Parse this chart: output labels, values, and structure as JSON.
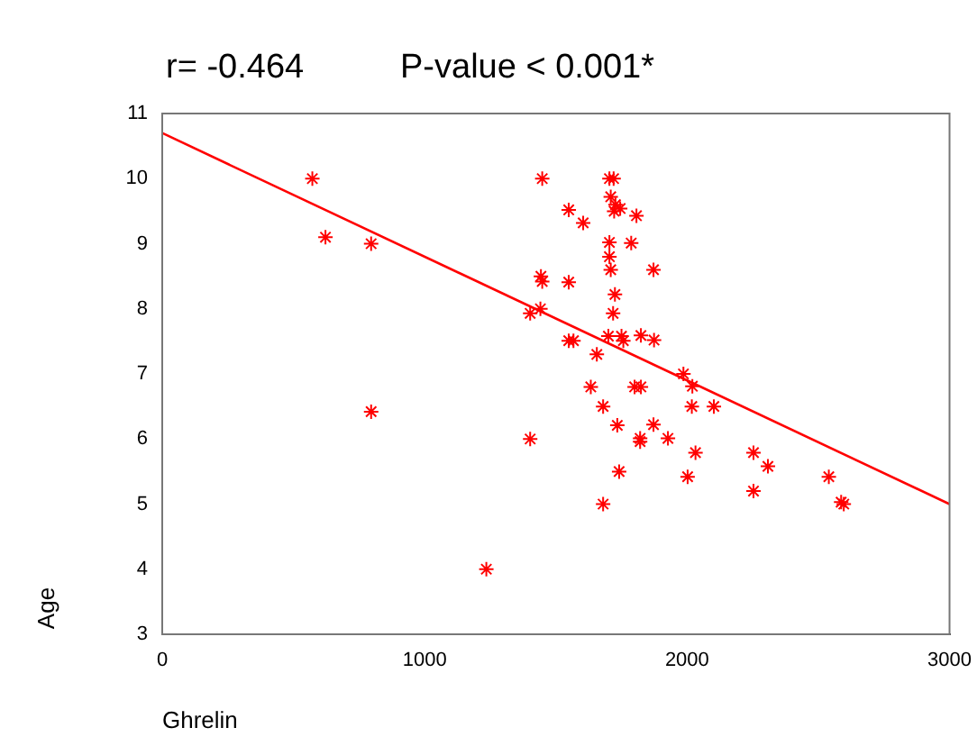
{
  "chart_data": {
    "type": "scatter",
    "title": "r= -0.464",
    "subtitle": "P-value < 0.001*",
    "xlabel": "Ghrelin",
    "ylabel": "Age",
    "xlim": [
      0,
      3000
    ],
    "xticks": [
      0,
      1000,
      2000,
      3000
    ],
    "ylim": [
      3,
      11
    ],
    "yticks": [
      3,
      4,
      5,
      6,
      7,
      8,
      9,
      10,
      11
    ],
    "grid": false,
    "legend": false,
    "marker": "cross",
    "series": [
      {
        "color": "#ff0000",
        "x": [
          572,
          622,
          796,
          796,
          1402,
          1235,
          1448,
          1402,
          1441,
          1443,
          1448,
          1704,
          1720,
          1709,
          1727,
          1745,
          1722,
          1549,
          1604,
          1807,
          1704,
          1787,
          1704,
          1709,
          1872,
          1549,
          1725,
          1718,
          1549,
          1567,
          1656,
          1700,
          1750,
          1757,
          1824,
          1874,
          1986,
          2020,
          1633,
          1800,
          1824,
          1680,
          2018,
          2102,
          1734,
          1872,
          1821,
          1821,
          1927,
          2032,
          2253,
          2308,
          1741,
          2002,
          2540,
          2253,
          2587,
          2597,
          1680
        ],
        "values": [
          10.0,
          9.1,
          9.0,
          6.42,
          6.0,
          4.0,
          10.0,
          7.93,
          8.0,
          8.5,
          8.42,
          10.0,
          10.0,
          9.72,
          9.6,
          9.54,
          9.5,
          9.52,
          9.32,
          9.43,
          9.02,
          9.01,
          8.8,
          8.6,
          8.6,
          8.41,
          8.22,
          7.93,
          7.51,
          7.51,
          7.3,
          7.58,
          7.58,
          7.51,
          7.59,
          7.52,
          7.0,
          6.81,
          6.8,
          6.8,
          6.8,
          6.5,
          6.5,
          6.5,
          6.21,
          6.22,
          6.01,
          5.96,
          6.01,
          5.79,
          5.79,
          5.58,
          5.5,
          5.42,
          5.42,
          5.2,
          5.03,
          5.0,
          5.0
        ]
      },
      {
        "type": "line",
        "color": "#ff0000",
        "marker": "none",
        "line_style": "solid",
        "x": [
          0,
          3000
        ],
        "values": [
          10.7,
          5.0
        ]
      }
    ]
  }
}
